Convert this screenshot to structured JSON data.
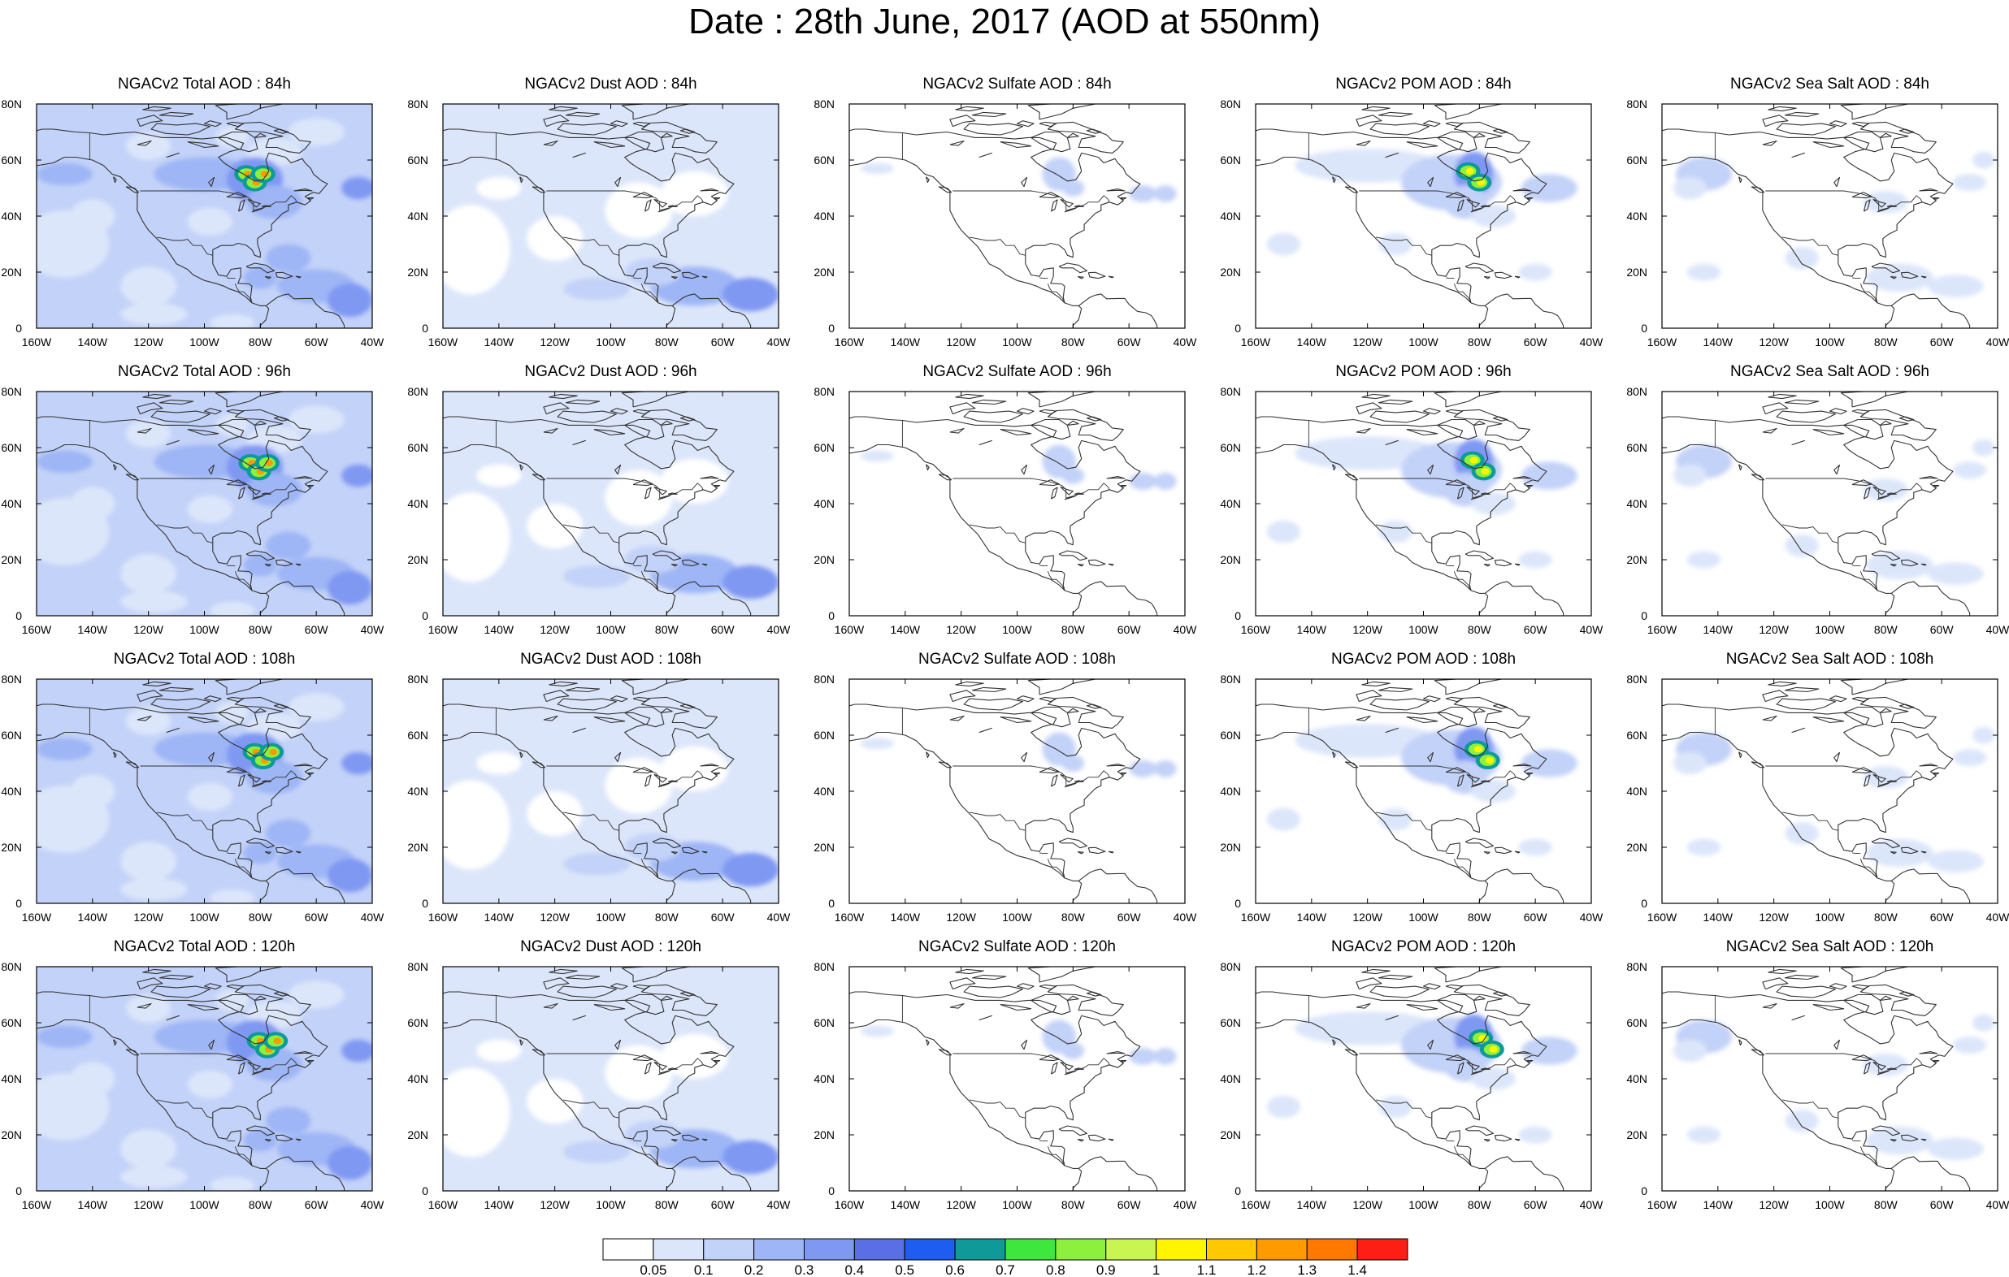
{
  "title": "Date : 28th June, 2017 (AOD at 550nm)",
  "rows": [
    {
      "panels": [
        {
          "title": "NGACv2 Total AOD : 84h",
          "kind": "total"
        },
        {
          "title": "NGACv2 Dust AOD : 84h",
          "kind": "dust"
        },
        {
          "title": "NGACv2 Sulfate AOD : 84h",
          "kind": "sulfate"
        },
        {
          "title": "NGACv2 POM AOD : 84h",
          "kind": "pom"
        },
        {
          "title": "NGACv2 Sea Salt AOD : 84h",
          "kind": "seasalt"
        }
      ]
    },
    {
      "panels": [
        {
          "title": "NGACv2 Total AOD : 96h",
          "kind": "total"
        },
        {
          "title": "NGACv2 Dust AOD : 96h",
          "kind": "dust"
        },
        {
          "title": "NGACv2 Sulfate AOD : 96h",
          "kind": "sulfate"
        },
        {
          "title": "NGACv2 POM AOD : 96h",
          "kind": "pom"
        },
        {
          "title": "NGACv2 Sea Salt AOD : 96h",
          "kind": "seasalt"
        }
      ]
    },
    {
      "panels": [
        {
          "title": "NGACv2 Total AOD : 108h",
          "kind": "total"
        },
        {
          "title": "NGACv2 Dust AOD : 108h",
          "kind": "dust"
        },
        {
          "title": "NGACv2 Sulfate AOD : 108h",
          "kind": "sulfate"
        },
        {
          "title": "NGACv2 POM AOD : 108h",
          "kind": "pom"
        },
        {
          "title": "NGACv2 Sea Salt AOD : 108h",
          "kind": "seasalt"
        }
      ]
    },
    {
      "panels": [
        {
          "title": "NGACv2 Total AOD : 120h",
          "kind": "total"
        },
        {
          "title": "NGACv2 Dust AOD : 120h",
          "kind": "dust"
        },
        {
          "title": "NGACv2 Sulfate AOD : 120h",
          "kind": "sulfate"
        },
        {
          "title": "NGACv2 POM AOD : 120h",
          "kind": "pom"
        },
        {
          "title": "NGACv2 Sea Salt  AOD : 120h",
          "kind": "seasalt"
        }
      ]
    }
  ],
  "x_ticks": [
    "160W",
    "140W",
    "120W",
    "100W",
    "80W",
    "60W",
    "40W"
  ],
  "y_ticks": [
    "0",
    "20N",
    "40N",
    "60N",
    "80N"
  ],
  "colorbar": {
    "colors": [
      "#ffffff",
      "#dce6fa",
      "#c3d2f8",
      "#9eb6f6",
      "#7f98f2",
      "#5a6fe6",
      "#1f5df0",
      "#0f9a9a",
      "#3ee63e",
      "#8cf03c",
      "#c8f550",
      "#fff500",
      "#ffc800",
      "#ff9b00",
      "#ff7800",
      "#ff1e14"
    ],
    "labels": [
      "0.05",
      "0.1",
      "0.2",
      "0.3",
      "0.4",
      "0.5",
      "0.6",
      "0.7",
      "0.8",
      "0.9",
      "1",
      "1.1",
      "1.2",
      "1.3",
      "1.4"
    ]
  }
}
